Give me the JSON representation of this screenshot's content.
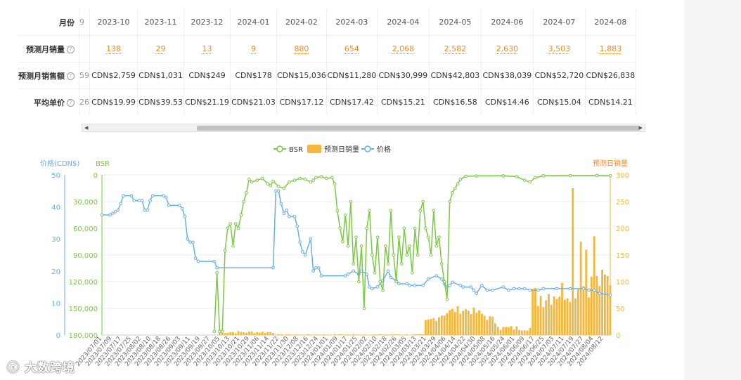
{
  "table": {
    "header_label": "月份",
    "cut_first_col": {
      "header": "9",
      "sales": "",
      "revenue": "59",
      "price": "26"
    },
    "months": [
      "2023-10",
      "2023-11",
      "2023-12",
      "2024-01",
      "2024-02",
      "2024-03",
      "2024-04",
      "2024-05",
      "2024-06",
      "2024-07",
      "2024-08"
    ],
    "rows": {
      "sales_label": "预测月销量",
      "sales": [
        "138",
        "29",
        "13",
        "9",
        "880",
        "654",
        "2,068",
        "2,582",
        "2,630",
        "3,503",
        "1,883"
      ],
      "revenue_label": "预测月销售额",
      "revenue": [
        "CDN$2,759",
        "CDN$1,031",
        "CDN$249",
        "CDN$178",
        "CDN$15,036",
        "CDN$11,280",
        "CDN$30,999",
        "CDN$42,803",
        "CDN$38,039",
        "CDN$52,720",
        "CDN$26,838"
      ],
      "price_label": "平均单价",
      "price": [
        "CDN$19.99",
        "CDN$39.53",
        "CDN$21.19",
        "CDN$21.03",
        "CDN$17.12",
        "CDN$17.42",
        "CDN$15.21",
        "CDN$16.58",
        "CDN$14.46",
        "CDN$15.04",
        "CDN$14.21"
      ]
    },
    "help_icon": "question-circle-icon"
  },
  "watermark": "大数跨境",
  "chart_data": {
    "type": "line",
    "legend": [
      "BSR",
      "预测日销量",
      "价格"
    ],
    "legend_position": "top-center",
    "colors": {
      "bsr": "#7ac943",
      "sales": "#f5b73b",
      "price": "#6aaee6",
      "grid": "#eeeeee"
    },
    "axes": {
      "price": {
        "label": "价格(CDN$)",
        "ticks": [
          "50",
          "40",
          "30",
          "20",
          "10",
          "0"
        ],
        "range": [
          0,
          50
        ]
      },
      "bsr": {
        "label": "BSR",
        "ticks": [
          "0",
          "30,000",
          "60,000",
          "90,000",
          "120,000",
          "150,000",
          "180,000"
        ],
        "range": [
          0,
          180000
        ],
        "inverted": true
      },
      "sales": {
        "label": "预测日销量",
        "ticks": [
          "300",
          "250",
          "200",
          "150",
          "100",
          "50",
          "0"
        ],
        "range": [
          0,
          300
        ]
      }
    },
    "x_labels": [
      "2023/07/01",
      "2023/07/09",
      "2023/07/17",
      "2023/07/25",
      "2023/08/02",
      "2023/08/10",
      "2023/08/18",
      "2023/08/26",
      "2023/09/03",
      "2023/09/11",
      "2023/09/19",
      "2023/09/27",
      "2023/10/05",
      "2023/10/13",
      "2023/10/21",
      "2023/10/29",
      "2023/11/06",
      "2023/11/14",
      "2023/11/22",
      "2023/11/30",
      "2023/12/08",
      "2023/12/16",
      "2023/12/24",
      "2024/01/01",
      "2024/01/09",
      "2024/01/17",
      "2024/01/25",
      "2024/02/02",
      "2024/02/10",
      "2024/02/18",
      "2024/02/26",
      "2024/03/05",
      "2024/03/13",
      "2024/03/21",
      "2024/03/29",
      "2024/04/06",
      "2024/04/14",
      "2024/04/22",
      "2024/04/30",
      "2024/05/08",
      "2024/05/16",
      "2024/05/24",
      "2024/06/01",
      "2024/06/09",
      "2024/06/17",
      "2024/06/25",
      "2024/07/03",
      "2024/07/11",
      "2024/07/19",
      "2024/07/27",
      "2024/08/04",
      "2024/08/12"
    ],
    "price_series": [
      [
        0,
        37.5
      ],
      [
        3,
        37.5
      ],
      [
        4,
        38
      ],
      [
        5,
        38.5
      ],
      [
        6,
        39
      ],
      [
        7,
        41
      ],
      [
        8,
        43.5
      ],
      [
        11,
        43.5
      ],
      [
        12,
        42
      ],
      [
        14,
        42
      ],
      [
        15,
        42
      ],
      [
        16,
        39
      ],
      [
        17,
        39
      ],
      [
        18,
        42
      ],
      [
        19,
        43.5
      ],
      [
        23,
        43.5
      ],
      [
        24,
        43
      ],
      [
        25,
        40.5
      ],
      [
        29,
        40.5
      ],
      [
        30,
        39.5
      ],
      [
        31,
        37
      ],
      [
        32,
        30
      ],
      [
        33,
        29
      ],
      [
        34,
        29
      ],
      [
        35,
        24
      ],
      [
        36,
        23
      ],
      [
        42,
        23
      ],
      [
        43,
        21
      ],
      [
        64,
        21
      ],
      [
        65,
        45
      ],
      [
        66,
        45
      ],
      [
        67,
        41
      ],
      [
        68,
        38
      ],
      [
        69,
        39
      ],
      [
        70,
        37
      ],
      [
        72,
        37
      ],
      [
        73,
        34
      ],
      [
        74,
        29
      ],
      [
        75,
        26
      ],
      [
        76,
        25
      ],
      [
        78,
        30
      ],
      [
        79,
        20
      ],
      [
        80,
        21
      ],
      [
        81,
        21
      ],
      [
        82,
        18.5
      ],
      [
        91,
        18.5
      ],
      [
        92,
        19
      ],
      [
        94,
        20
      ],
      [
        96,
        19
      ],
      [
        97,
        20
      ],
      [
        99,
        19
      ],
      [
        100,
        15
      ],
      [
        101,
        14.5
      ],
      [
        103,
        15
      ],
      [
        105,
        17
      ],
      [
        107,
        20
      ],
      [
        108,
        18
      ],
      [
        110,
        17
      ],
      [
        111,
        16
      ],
      [
        114,
        16
      ],
      [
        115,
        15.5
      ],
      [
        117,
        15.5
      ],
      [
        120,
        15.5
      ],
      [
        122,
        17.5
      ],
      [
        125,
        18.5
      ],
      [
        127,
        17.5
      ],
      [
        128,
        16
      ],
      [
        129,
        15
      ],
      [
        130,
        15.5
      ],
      [
        131,
        16.5
      ],
      [
        134,
        15.5
      ],
      [
        135,
        15
      ],
      [
        138,
        15
      ],
      [
        139,
        14
      ],
      [
        140,
        13
      ],
      [
        142,
        15.5
      ],
      [
        144,
        14
      ],
      [
        146,
        14
      ],
      [
        150,
        15
      ],
      [
        152,
        14
      ],
      [
        154,
        14.5
      ],
      [
        156,
        14.5
      ],
      [
        158,
        14.5
      ],
      [
        160,
        14
      ],
      [
        163,
        14
      ],
      [
        165,
        14.5
      ],
      [
        170,
        14.5
      ],
      [
        175,
        14.5
      ],
      [
        180,
        14.5
      ],
      [
        182,
        14
      ],
      [
        184,
        14
      ],
      [
        186,
        13
      ],
      [
        190,
        12.5
      ]
    ],
    "bsr_series": [
      [
        0,
        null
      ],
      [
        41,
        null
      ],
      [
        42,
        176000
      ],
      [
        43,
        110000
      ],
      [
        44,
        176000
      ],
      [
        45,
        176000
      ],
      [
        46,
        85000
      ],
      [
        47,
        60000
      ],
      [
        48,
        55000
      ],
      [
        49,
        80000
      ],
      [
        50,
        55000
      ],
      [
        51,
        60000
      ],
      [
        52,
        45000
      ],
      [
        53,
        30000
      ],
      [
        54,
        20000
      ],
      [
        55,
        5000
      ],
      [
        56,
        8000
      ],
      [
        58,
        6000
      ],
      [
        60,
        4000
      ],
      [
        62,
        10000
      ],
      [
        63,
        12000
      ],
      [
        64,
        7000
      ],
      [
        66,
        13000
      ],
      [
        68,
        15000
      ],
      [
        70,
        8000
      ],
      [
        72,
        6000
      ],
      [
        74,
        4000
      ],
      [
        76,
        5000
      ],
      [
        78,
        8000
      ],
      [
        79,
        6000
      ],
      [
        80,
        3000
      ],
      [
        82,
        2000
      ],
      [
        84,
        4000
      ],
      [
        86,
        3000
      ],
      [
        87,
        10000
      ],
      [
        88,
        40000
      ],
      [
        89,
        60000
      ],
      [
        90,
        75000
      ],
      [
        91,
        45000
      ],
      [
        92,
        80000
      ],
      [
        93,
        30000
      ],
      [
        94,
        100000
      ],
      [
        95,
        70000
      ],
      [
        96,
        120000
      ],
      [
        97,
        80000
      ],
      [
        98,
        150000
      ],
      [
        99,
        60000
      ],
      [
        100,
        40000
      ],
      [
        101,
        90000
      ],
      [
        102,
        110000
      ],
      [
        103,
        70000
      ],
      [
        104,
        120000
      ],
      [
        105,
        130000
      ],
      [
        106,
        80000
      ],
      [
        107,
        100000
      ],
      [
        108,
        40000
      ],
      [
        109,
        90000
      ],
      [
        110,
        120000
      ],
      [
        111,
        70000
      ],
      [
        112,
        100000
      ],
      [
        113,
        60000
      ],
      [
        114,
        90000
      ],
      [
        115,
        80000
      ],
      [
        116,
        110000
      ],
      [
        117,
        60000
      ],
      [
        118,
        90000
      ],
      [
        119,
        40000
      ],
      [
        120,
        30000
      ],
      [
        121,
        60000
      ],
      [
        122,
        70000
      ],
      [
        123,
        90000
      ],
      [
        124,
        40000
      ],
      [
        125,
        80000
      ],
      [
        126,
        70000
      ],
      [
        127,
        100000
      ],
      [
        128,
        120000
      ],
      [
        129,
        140000
      ],
      [
        130,
        30000
      ],
      [
        131,
        20000
      ],
      [
        132,
        15000
      ],
      [
        133,
        10000
      ],
      [
        134,
        5000
      ],
      [
        136,
        1500
      ],
      [
        140,
        1200
      ],
      [
        150,
        1000
      ],
      [
        155,
        2000
      ],
      [
        158,
        6000
      ],
      [
        160,
        8000
      ],
      [
        162,
        3000
      ],
      [
        165,
        1000
      ],
      [
        175,
        800
      ],
      [
        185,
        700
      ],
      [
        190,
        1000
      ]
    ],
    "sales_bars": "computed-from-month-totals"
  }
}
